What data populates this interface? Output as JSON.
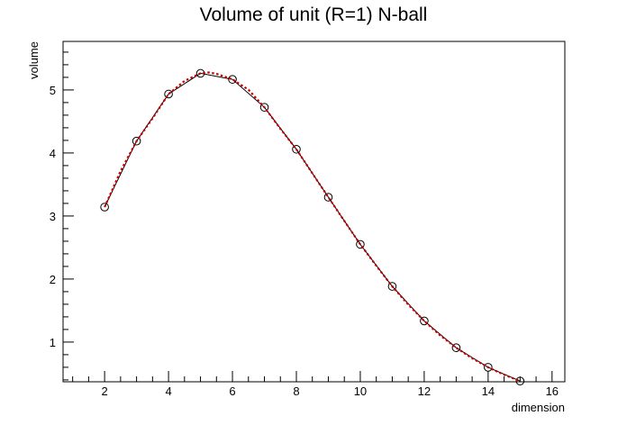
{
  "chart_data": {
    "type": "line",
    "title": "Volume of unit (R=1) N-ball",
    "xlabel": "dimension",
    "ylabel": "volume",
    "xlim": [
      0.7,
      16.4
    ],
    "ylim": [
      0.37,
      5.77
    ],
    "x_ticks": [
      2,
      4,
      6,
      8,
      10,
      12,
      14,
      16
    ],
    "y_ticks": [
      1,
      2,
      3,
      4,
      5
    ],
    "grid": false,
    "series": [
      {
        "kind": "markers-with-line",
        "color": "#000000",
        "x": [
          2,
          3,
          4,
          5,
          6,
          7,
          8,
          9,
          10,
          11,
          12,
          13,
          14,
          15
        ],
        "y": [
          3.1416,
          4.1888,
          4.9348,
          5.2638,
          5.1677,
          4.7248,
          4.0587,
          3.2985,
          2.5502,
          1.8841,
          1.3353,
          0.9106,
          0.5993,
          0.3814
        ]
      },
      {
        "kind": "dotted-curve",
        "color": "#cc0000",
        "x": [
          2.0,
          2.5,
          3.0,
          3.5,
          4.0,
          4.5,
          5.0,
          5.26,
          5.5,
          6.0,
          6.5,
          7.0,
          7.5,
          8.0,
          8.5,
          9.0,
          9.5,
          10.0,
          10.5,
          11.0,
          11.5,
          12.0,
          12.5,
          13.0,
          13.5,
          14.0,
          14.5,
          15.0
        ],
        "y": [
          3.1416,
          3.7136,
          4.1888,
          4.549,
          4.9348,
          5.1428,
          5.2638,
          5.2777,
          5.2563,
          5.1677,
          5.0035,
          4.7248,
          4.3838,
          4.0587,
          3.6768,
          3.2985,
          2.9213,
          2.5502,
          2.2113,
          1.8841,
          1.5945,
          1.3353,
          1.1056,
          0.9106,
          0.7433,
          0.5993,
          0.482,
          0.3814
        ]
      }
    ]
  }
}
